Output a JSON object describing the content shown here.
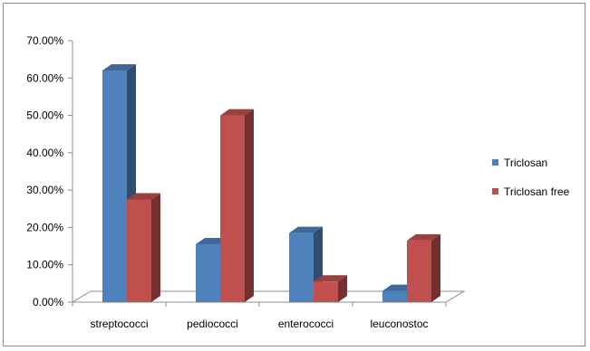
{
  "chart_data": {
    "type": "bar",
    "title": "",
    "xlabel": "",
    "ylabel": "",
    "ylim": [
      0,
      0.7
    ],
    "y_ticks": [
      "0.00%",
      "10.00%",
      "20.00%",
      "30.00%",
      "40.00%",
      "50.00%",
      "60.00%",
      "70.00%"
    ],
    "categories": [
      "streptococci",
      "pediococci",
      "enterococci",
      "leuconostoc"
    ],
    "series": [
      {
        "name": "Triclosan",
        "values": [
          0.62,
          0.155,
          0.185,
          0.03
        ],
        "color": "#4F81BD"
      },
      {
        "name": "Triclosan free",
        "values": [
          0.275,
          0.5,
          0.055,
          0.165
        ],
        "color": "#C0504D"
      }
    ],
    "legend_position": "right",
    "grid": false,
    "style": "3d-clustered-column"
  }
}
